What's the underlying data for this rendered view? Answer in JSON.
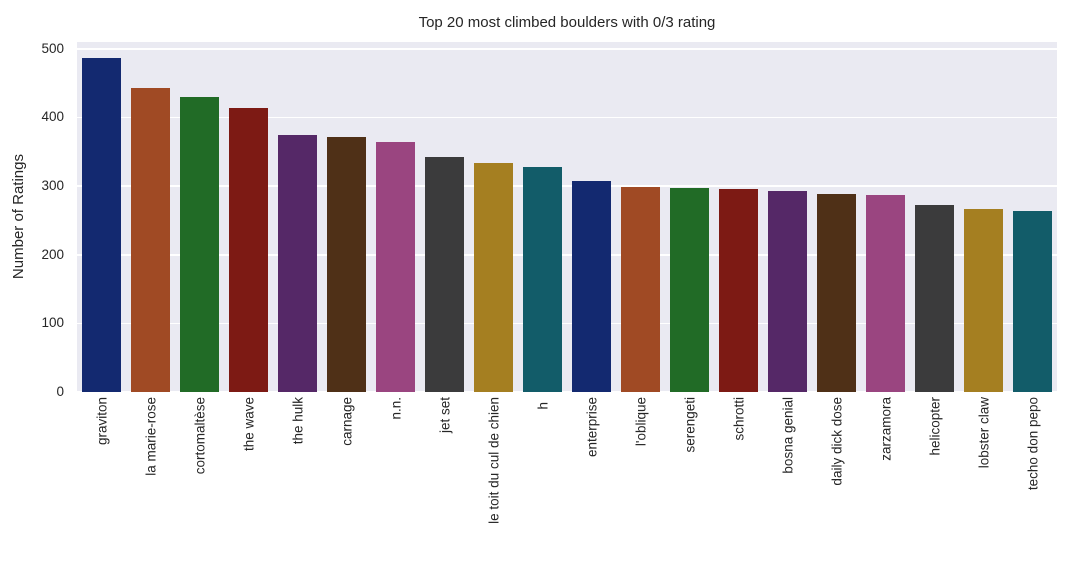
{
  "chart_data": {
    "type": "bar",
    "title": "Top 20 most climbed boulders with 0/3 rating",
    "xlabel": "",
    "ylabel": "Number of Ratings",
    "categories": [
      "graviton",
      "la marie-rose",
      "cortomaltèse",
      "the wave",
      "the hulk",
      "carnage",
      "n.n.",
      "jet set",
      "le toit du cul de chien",
      "h",
      "enterprise",
      "l'oblique",
      "serengeti",
      "schrotti",
      "bosna genial",
      "daily dick dose",
      "zarzamora",
      "helicopter",
      "lobster claw",
      "techo don pepo"
    ],
    "values": [
      487,
      443,
      430,
      414,
      375,
      372,
      364,
      342,
      333,
      328,
      308,
      299,
      297,
      296,
      293,
      289,
      287,
      273,
      266,
      264
    ],
    "yticks": [
      0,
      100,
      200,
      300,
      400,
      500
    ],
    "ylim": [
      0,
      510
    ],
    "grid": true,
    "legend_position": "none",
    "palette": [
      "#132970",
      "#a04a24",
      "#216b26",
      "#7d1a14",
      "#552867",
      "#4f3017",
      "#9a4580",
      "#3b3b3c",
      "#a57f21",
      "#125c69"
    ],
    "plot_background": "#eaeaf2",
    "grid_color": "#ffffff",
    "text_color": "#262626"
  }
}
